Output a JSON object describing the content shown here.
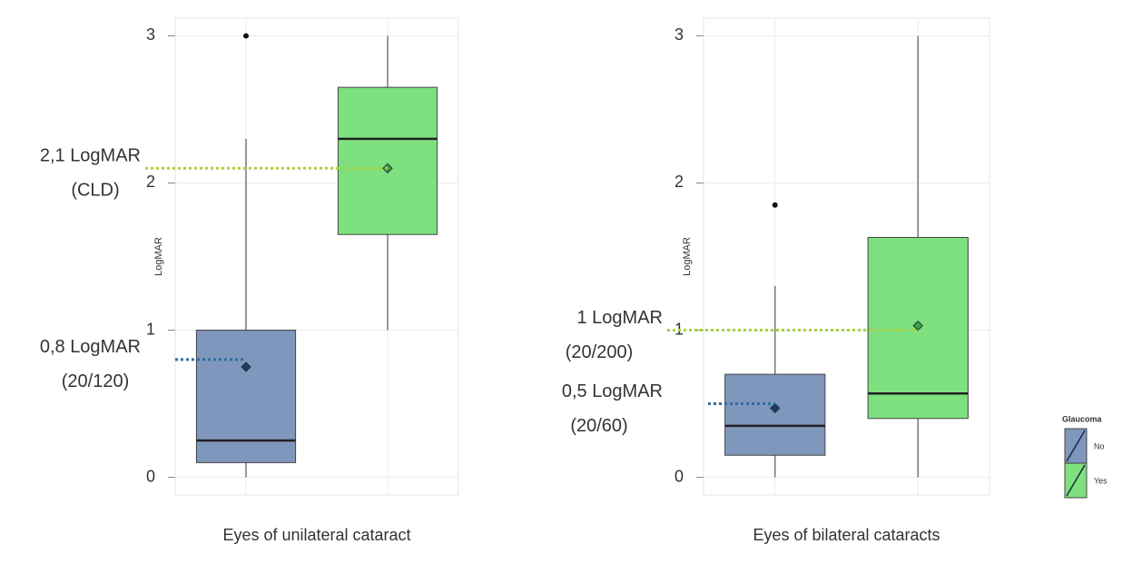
{
  "chart_data": [
    {
      "type": "box",
      "xlabel": "Eyes of unilateral cataract",
      "ylabel": "LogMAR",
      "ylim": [
        -0.12,
        3.12
      ],
      "yticks": [
        0,
        1,
        2,
        3
      ],
      "grid": true,
      "series": [
        {
          "name": "No",
          "color": "#7f96bd",
          "mean_color": "#1f3a5f",
          "min": 0,
          "q1": 0.1,
          "median": 0.25,
          "q3": 1.0,
          "max": 2.3,
          "mean": 0.75,
          "outliers": [
            3
          ]
        },
        {
          "name": "Yes",
          "color": "#7ee07e",
          "mean_color": "#3aa63a",
          "min": 1.0,
          "q1": 1.65,
          "median": 2.3,
          "q3": 2.65,
          "max": 3,
          "mean": 2.1,
          "outliers": []
        }
      ],
      "annotations": [
        {
          "label": "2,1 LogMAR",
          "sublabel": "(CLD)",
          "value": 2.1,
          "color": "#6f9a3c",
          "line_color": "#a9d13f"
        },
        {
          "label": "0,8 LogMAR",
          "sublabel": "(20/120)",
          "value": 0.8,
          "color": "#3b5b7a",
          "line_color": "#2e6f9e"
        }
      ]
    },
    {
      "type": "box",
      "xlabel": "Eyes of bilateral cataracts",
      "ylabel": "LogMAR",
      "ylim": [
        -0.12,
        3.12
      ],
      "yticks": [
        0,
        1,
        2,
        3
      ],
      "grid": true,
      "series": [
        {
          "name": "No",
          "color": "#7f96bd",
          "mean_color": "#1f3a5f",
          "min": 0,
          "q1": 0.15,
          "median": 0.35,
          "q3": 0.7,
          "max": 1.3,
          "mean": 0.47,
          "outliers": [
            1.85
          ]
        },
        {
          "name": "Yes",
          "color": "#7ee07e",
          "mean_color": "#3aa63a",
          "min": 0,
          "q1": 0.4,
          "median": 0.57,
          "q3": 1.63,
          "max": 3,
          "mean": 1.03,
          "outliers": []
        }
      ],
      "annotations": [
        {
          "label": "1 LogMAR",
          "sublabel": "(20/200)",
          "value": 1,
          "color": "#6f9a3c",
          "line_color": "#a9d13f"
        },
        {
          "label": "0,5 LogMAR",
          "sublabel": "(20/60)",
          "value": 0.5,
          "color": "#3b5b7a",
          "line_color": "#2e6f9e"
        }
      ]
    }
  ],
  "legend": {
    "title": "Glaucoma"
  }
}
